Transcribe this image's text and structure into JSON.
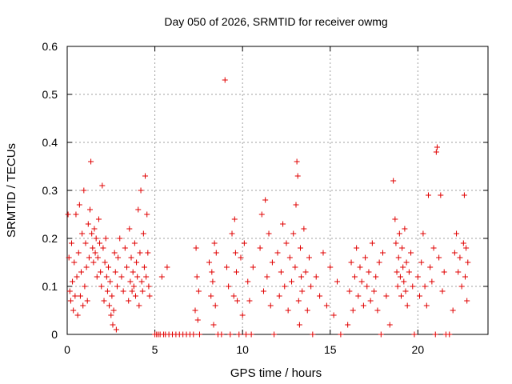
{
  "chart_data": {
    "type": "scatter",
    "title": "Day 050 of 2026, SRMTID for receiver owmg",
    "xlabel": "GPS time / hours",
    "ylabel": "SRMTID / TECUs",
    "xlim": [
      0,
      24
    ],
    "ylim": [
      0,
      0.6
    ],
    "xticks": [
      0,
      5,
      10,
      15,
      20
    ],
    "xtick_labels": [
      "0",
      "5",
      "10",
      "15",
      "20"
    ],
    "yticks": [
      0,
      0.1,
      0.2,
      0.3,
      0.4,
      0.5,
      0.6
    ],
    "ytick_labels": [
      "0",
      "0.1",
      "0.2",
      "0.3",
      "0.4",
      "0.5",
      "0.6"
    ],
    "grid": true,
    "marker": "+",
    "marker_color": "#e00000",
    "series": [
      {
        "name": "SRMTID",
        "points": [
          [
            0.05,
            0.25
          ],
          [
            0.1,
            0.16
          ],
          [
            0.15,
            0.09
          ],
          [
            0.2,
            0.07
          ],
          [
            0.25,
            0.19
          ],
          [
            0.3,
            0.11
          ],
          [
            0.35,
            0.05
          ],
          [
            0.4,
            0.15
          ],
          [
            0.45,
            0.08
          ],
          [
            0.5,
            0.25
          ],
          [
            0.55,
            0.12
          ],
          [
            0.6,
            0.04
          ],
          [
            0.65,
            0.17
          ],
          [
            0.7,
            0.27
          ],
          [
            0.75,
            0.08
          ],
          [
            0.8,
            0.13
          ],
          [
            0.85,
            0.21
          ],
          [
            0.9,
            0.06
          ],
          [
            0.95,
            0.3
          ],
          [
            1.0,
            0.1
          ],
          [
            1.05,
            0.19
          ],
          [
            1.1,
            0.14
          ],
          [
            1.15,
            0.07
          ],
          [
            1.2,
            0.23
          ],
          [
            1.25,
            0.16
          ],
          [
            1.3,
            0.26
          ],
          [
            1.35,
            0.36
          ],
          [
            1.4,
            0.21
          ],
          [
            1.45,
            0.18
          ],
          [
            1.5,
            0.15
          ],
          [
            1.55,
            0.22
          ],
          [
            1.6,
            0.17
          ],
          [
            1.65,
            0.2
          ],
          [
            1.7,
            0.12
          ],
          [
            1.75,
            0.16
          ],
          [
            1.8,
            0.24
          ],
          [
            1.85,
            0.19
          ],
          [
            1.9,
            0.13
          ],
          [
            1.95,
            0.1
          ],
          [
            2.0,
            0.31
          ],
          [
            2.05,
            0.18
          ],
          [
            2.1,
            0.07
          ],
          [
            2.15,
            0.15
          ],
          [
            2.2,
            0.2
          ],
          [
            2.25,
            0.12
          ],
          [
            2.3,
            0.09
          ],
          [
            2.35,
            0.14
          ],
          [
            2.4,
            0.06
          ],
          [
            2.45,
            0.11
          ],
          [
            2.5,
            0.04
          ],
          [
            2.55,
            0.08
          ],
          [
            2.6,
            0.02
          ],
          [
            2.65,
            0.05
          ],
          [
            2.7,
            0.17
          ],
          [
            2.75,
            0.13
          ],
          [
            2.8,
            0.01
          ],
          [
            2.85,
            0.1
          ],
          [
            2.9,
            0.16
          ],
          [
            3.0,
            0.2
          ],
          [
            3.1,
            0.12
          ],
          [
            3.2,
            0.09
          ],
          [
            3.3,
            0.18
          ],
          [
            3.4,
            0.14
          ],
          [
            3.5,
            0.07
          ],
          [
            3.55,
            0.22
          ],
          [
            3.6,
            0.11
          ],
          [
            3.65,
            0.16
          ],
          [
            3.7,
            0.09
          ],
          [
            3.75,
            0.13
          ],
          [
            3.8,
            0.1
          ],
          [
            3.85,
            0.19
          ],
          [
            3.9,
            0.08
          ],
          [
            3.95,
            0.15
          ],
          [
            4.0,
            0.12
          ],
          [
            4.05,
            0.26
          ],
          [
            4.1,
            0.06
          ],
          [
            4.15,
            0.17
          ],
          [
            4.2,
            0.3
          ],
          [
            4.25,
            0.11
          ],
          [
            4.3,
            0.09
          ],
          [
            4.35,
            0.21
          ],
          [
            4.4,
            0.14
          ],
          [
            4.45,
            0.33
          ],
          [
            4.5,
            0.12
          ],
          [
            4.55,
            0.25
          ],
          [
            4.6,
            0.17
          ],
          [
            4.65,
            0.1
          ],
          [
            4.7,
            0.08
          ],
          [
            5.0,
            0.0
          ],
          [
            5.1,
            0.0
          ],
          [
            5.2,
            0.0
          ],
          [
            5.3,
            0.0
          ],
          [
            5.4,
            0.12
          ],
          [
            5.5,
            0.0
          ],
          [
            5.6,
            0.0
          ],
          [
            5.7,
            0.14
          ],
          [
            5.8,
            0.0
          ],
          [
            6.0,
            0.0
          ],
          [
            6.2,
            0.0
          ],
          [
            6.4,
            0.0
          ],
          [
            6.6,
            0.0
          ],
          [
            6.8,
            0.0
          ],
          [
            7.0,
            0.0
          ],
          [
            7.2,
            0.0
          ],
          [
            7.3,
            0.05
          ],
          [
            7.35,
            0.18
          ],
          [
            7.4,
            0.12
          ],
          [
            7.45,
            0.03
          ],
          [
            7.5,
            0.09
          ],
          [
            7.55,
            0.0
          ],
          [
            8.1,
            0.15
          ],
          [
            8.2,
            0.08
          ],
          [
            8.25,
            0.13
          ],
          [
            8.3,
            0.11
          ],
          [
            8.35,
            0.02
          ],
          [
            8.4,
            0.19
          ],
          [
            8.45,
            0.06
          ],
          [
            8.5,
            0.17
          ],
          [
            8.6,
            0.0
          ],
          [
            8.8,
            0.0
          ],
          [
            9.0,
            0.53
          ],
          [
            9.1,
            0.14
          ],
          [
            9.2,
            0.1
          ],
          [
            9.3,
            0.0
          ],
          [
            9.4,
            0.21
          ],
          [
            9.5,
            0.08
          ],
          [
            9.55,
            0.24
          ],
          [
            9.6,
            0.17
          ],
          [
            9.65,
            0.13
          ],
          [
            9.7,
            0.07
          ],
          [
            9.8,
            0.0
          ],
          [
            9.9,
            0.16
          ],
          [
            10.0,
            0.04
          ],
          [
            10.1,
            0.19
          ],
          [
            10.2,
            0.0
          ],
          [
            10.3,
            0.11
          ],
          [
            10.4,
            0.07
          ],
          [
            10.5,
            0.0
          ],
          [
            10.6,
            0.14
          ],
          [
            11.0,
            0.18
          ],
          [
            11.1,
            0.25
          ],
          [
            11.2,
            0.09
          ],
          [
            11.3,
            0.28
          ],
          [
            11.4,
            0.12
          ],
          [
            11.5,
            0.21
          ],
          [
            11.6,
            0.06
          ],
          [
            11.7,
            0.15
          ],
          [
            11.8,
            0.0
          ],
          [
            12.0,
            0.17
          ],
          [
            12.1,
            0.08
          ],
          [
            12.2,
            0.13
          ],
          [
            12.3,
            0.23
          ],
          [
            12.4,
            0.1
          ],
          [
            12.5,
            0.19
          ],
          [
            12.6,
            0.05
          ],
          [
            12.7,
            0.16
          ],
          [
            12.8,
            0.11
          ],
          [
            12.9,
            0.21
          ],
          [
            13.0,
            0.14
          ],
          [
            13.05,
            0.27
          ],
          [
            13.1,
            0.36
          ],
          [
            13.15,
            0.33
          ],
          [
            13.2,
            0.07
          ],
          [
            13.25,
            0.02
          ],
          [
            13.3,
            0.18
          ],
          [
            13.35,
            0.12
          ],
          [
            13.4,
            0.09
          ],
          [
            13.5,
            0.22
          ],
          [
            13.6,
            0.13
          ],
          [
            13.7,
            0.05
          ],
          [
            13.8,
            0.16
          ],
          [
            13.9,
            0.1
          ],
          [
            14.0,
            0.0
          ],
          [
            14.2,
            0.12
          ],
          [
            14.4,
            0.08
          ],
          [
            14.6,
            0.17
          ],
          [
            14.8,
            0.06
          ],
          [
            15.0,
            0.14
          ],
          [
            15.2,
            0.04
          ],
          [
            15.4,
            0.11
          ],
          [
            15.6,
            0.0
          ],
          [
            16.0,
            0.02
          ],
          [
            16.1,
            0.09
          ],
          [
            16.2,
            0.15
          ],
          [
            16.3,
            0.05
          ],
          [
            16.4,
            0.12
          ],
          [
            16.5,
            0.18
          ],
          [
            16.6,
            0.08
          ],
          [
            16.7,
            0.14
          ],
          [
            16.8,
            0.11
          ],
          [
            16.9,
            0.06
          ],
          [
            17.0,
            0.16
          ],
          [
            17.1,
            0.1
          ],
          [
            17.2,
            0.13
          ],
          [
            17.3,
            0.07
          ],
          [
            17.4,
            0.19
          ],
          [
            17.5,
            0.09
          ],
          [
            17.6,
            0.12
          ],
          [
            17.7,
            0.05
          ],
          [
            17.8,
            0.15
          ],
          [
            17.9,
            0.0
          ],
          [
            18.0,
            0.17
          ],
          [
            18.2,
            0.08
          ],
          [
            18.4,
            0.02
          ],
          [
            18.6,
            0.32
          ],
          [
            18.7,
            0.24
          ],
          [
            18.75,
            0.19
          ],
          [
            18.8,
            0.13
          ],
          [
            18.85,
            0.1
          ],
          [
            18.9,
            0.16
          ],
          [
            18.95,
            0.21
          ],
          [
            19.0,
            0.12
          ],
          [
            19.05,
            0.08
          ],
          [
            19.1,
            0.18
          ],
          [
            19.15,
            0.14
          ],
          [
            19.2,
            0.11
          ],
          [
            19.25,
            0.22
          ],
          [
            19.3,
            0.09
          ],
          [
            19.35,
            0.15
          ],
          [
            19.4,
            0.06
          ],
          [
            19.5,
            0.13
          ],
          [
            19.6,
            0.17
          ],
          [
            19.7,
            0.1
          ],
          [
            19.8,
            0.0
          ],
          [
            20.0,
            0.12
          ],
          [
            20.1,
            0.08
          ],
          [
            20.2,
            0.15
          ],
          [
            20.3,
            0.21
          ],
          [
            20.4,
            0.1
          ],
          [
            20.5,
            0.06
          ],
          [
            20.6,
            0.29
          ],
          [
            20.7,
            0.14
          ],
          [
            20.8,
            0.11
          ],
          [
            20.9,
            0.18
          ],
          [
            21.0,
            0.0
          ],
          [
            21.05,
            0.38
          ],
          [
            21.1,
            0.39
          ],
          [
            21.2,
            0.16
          ],
          [
            21.3,
            0.29
          ],
          [
            21.4,
            0.09
          ],
          [
            21.5,
            0.13
          ],
          [
            21.6,
            0.0
          ],
          [
            21.8,
            0.0
          ],
          [
            22.0,
            0.05
          ],
          [
            22.1,
            0.17
          ],
          [
            22.2,
            0.21
          ],
          [
            22.3,
            0.13
          ],
          [
            22.4,
            0.16
          ],
          [
            22.5,
            0.1
          ],
          [
            22.6,
            0.19
          ],
          [
            22.65,
            0.29
          ],
          [
            22.7,
            0.12
          ],
          [
            22.75,
            0.18
          ],
          [
            22.8,
            0.07
          ],
          [
            22.85,
            0.15
          ]
        ]
      }
    ]
  }
}
